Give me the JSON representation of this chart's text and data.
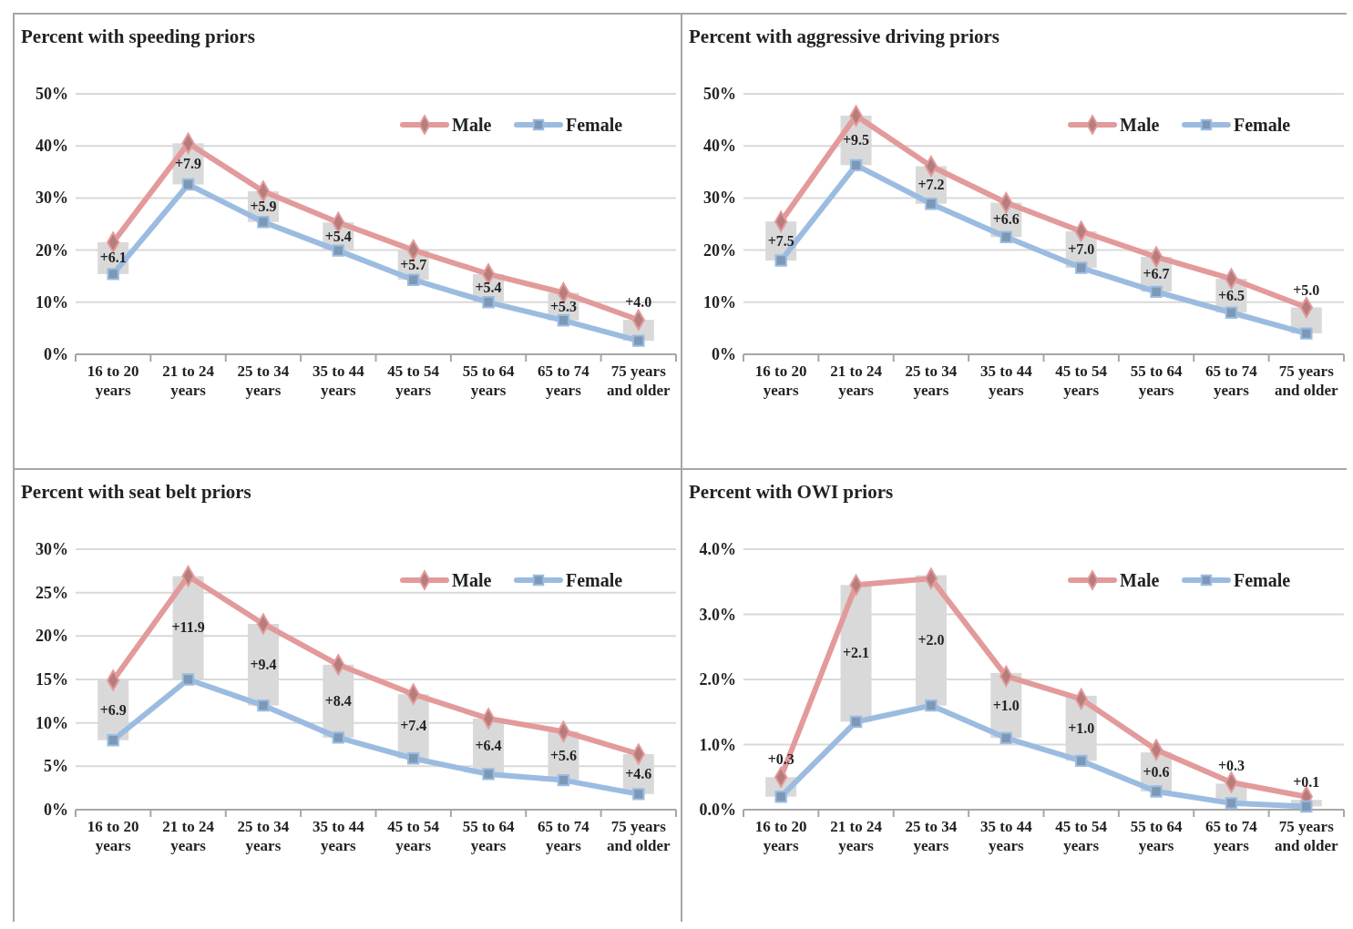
{
  "chart_data": [
    {
      "type": "line",
      "title": "Percent with speeding priors",
      "categories": [
        "16 to 20\nyears",
        "21 to 24\nyears",
        "25 to 34\nyears",
        "35 to 44\nyears",
        "45 to 54\nyears",
        "55 to 64\nyears",
        "65 to 74\nyears",
        "75 years\nand older"
      ],
      "ylim": [
        0,
        50
      ],
      "yticks": [
        {
          "value": 0,
          "label": "0%"
        },
        {
          "value": 10,
          "label": "10%"
        },
        {
          "value": 20,
          "label": "20%"
        },
        {
          "value": 30,
          "label": "30%"
        },
        {
          "value": 40,
          "label": "40%"
        },
        {
          "value": 50,
          "label": "50%"
        }
      ],
      "grid": "y",
      "legend": "top right",
      "series": [
        {
          "type": "bar",
          "color": "#d9d9d9",
          "base": [
            15.4,
            32.6,
            25.4,
            19.9,
            14.3,
            10.0,
            6.5,
            2.6
          ],
          "values": [
            6.1,
            7.9,
            5.9,
            5.4,
            5.7,
            5.4,
            5.3,
            4.0
          ],
          "value_labels": [
            "+6.1",
            "+7.9",
            "+5.9",
            "+5.4",
            "+5.7",
            "+5.4",
            "+5.3",
            "+4.0"
          ]
        },
        {
          "name": "Male",
          "color": "#e39a9a",
          "marker": "diamond",
          "values": [
            21.5,
            40.5,
            31.3,
            25.3,
            20.0,
            15.4,
            11.8,
            6.6
          ]
        },
        {
          "name": "Female",
          "color": "#9bbce0",
          "marker": "square",
          "values": [
            15.4,
            32.6,
            25.4,
            19.9,
            14.3,
            10.0,
            6.5,
            2.6
          ]
        }
      ]
    },
    {
      "type": "line",
      "title": "Percent with aggressive driving priors",
      "categories": [
        "16 to 20\nyears",
        "21 to 24\nyears",
        "25 to 34\nyears",
        "35 to 44\nyears",
        "45 to 54\nyears",
        "55 to 64\nyears",
        "65 to 74\nyears",
        "75 years\nand older"
      ],
      "ylim": [
        0,
        50
      ],
      "yticks": [
        {
          "value": 0,
          "label": "0%"
        },
        {
          "value": 10,
          "label": "10%"
        },
        {
          "value": 20,
          "label": "20%"
        },
        {
          "value": 30,
          "label": "30%"
        },
        {
          "value": 40,
          "label": "40%"
        },
        {
          "value": 50,
          "label": "50%"
        }
      ],
      "grid": "y",
      "legend": "top right",
      "series": [
        {
          "type": "bar",
          "color": "#d9d9d9",
          "base": [
            18.0,
            36.3,
            28.9,
            22.5,
            16.6,
            12.0,
            8.0,
            4.0
          ],
          "values": [
            7.5,
            9.5,
            7.2,
            6.6,
            7.0,
            6.7,
            6.5,
            5.0
          ],
          "value_labels": [
            "+7.5",
            "+9.5",
            "+7.2",
            "+6.6",
            "+7.0",
            "+6.7",
            "+6.5",
            "+5.0"
          ]
        },
        {
          "name": "Male",
          "color": "#e39a9a",
          "marker": "diamond",
          "values": [
            25.5,
            45.8,
            36.1,
            29.1,
            23.6,
            18.7,
            14.5,
            9.0
          ]
        },
        {
          "name": "Female",
          "color": "#9bbce0",
          "marker": "square",
          "values": [
            18.0,
            36.3,
            28.9,
            22.5,
            16.6,
            12.0,
            8.0,
            4.0
          ]
        }
      ]
    },
    {
      "type": "line",
      "title": "Percent with seat belt priors",
      "categories": [
        "16 to 20\nyears",
        "21 to 24\nyears",
        "25 to 34\nyears",
        "35 to 44\nyears",
        "45 to 54\nyears",
        "55 to 64\nyears",
        "65 to 74\nyears",
        "75 years\nand older"
      ],
      "ylim": [
        0,
        30
      ],
      "yticks": [
        {
          "value": 0,
          "label": "0%"
        },
        {
          "value": 5,
          "label": "5%"
        },
        {
          "value": 10,
          "label": "10%"
        },
        {
          "value": 15,
          "label": "15%"
        },
        {
          "value": 20,
          "label": "20%"
        },
        {
          "value": 25,
          "label": "25%"
        },
        {
          "value": 30,
          "label": "30%"
        }
      ],
      "grid": "y",
      "legend": "top right",
      "series": [
        {
          "type": "bar",
          "color": "#d9d9d9",
          "base": [
            8.0,
            15.0,
            12.0,
            8.3,
            5.9,
            4.1,
            3.4,
            1.8
          ],
          "values": [
            6.9,
            11.9,
            9.4,
            8.4,
            7.4,
            6.4,
            5.6,
            4.6
          ],
          "value_labels": [
            "+6.9",
            "+11.9",
            "+9.4",
            "+8.4",
            "+7.4",
            "+6.4",
            "+5.6",
            "+4.6"
          ]
        },
        {
          "name": "Male",
          "color": "#e39a9a",
          "marker": "diamond",
          "values": [
            14.9,
            26.9,
            21.4,
            16.7,
            13.3,
            10.5,
            9.0,
            6.4
          ]
        },
        {
          "name": "Female",
          "color": "#9bbce0",
          "marker": "square",
          "values": [
            8.0,
            15.0,
            12.0,
            8.3,
            5.9,
            4.1,
            3.4,
            1.8
          ]
        }
      ]
    },
    {
      "type": "line",
      "title": "Percent with OWI priors",
      "categories": [
        "16 to 20\nyears",
        "21 to 24\nyears",
        "25 to 34\nyears",
        "35 to 44\nyears",
        "45 to 54\nyears",
        "55 to 64\nyears",
        "65 to 74\nyears",
        "75 years\nand older"
      ],
      "ylim": [
        0,
        4
      ],
      "yticks": [
        {
          "value": 0,
          "label": "0.0%"
        },
        {
          "value": 1,
          "label": "1.0%"
        },
        {
          "value": 2,
          "label": "2.0%"
        },
        {
          "value": 3,
          "label": "3.0%"
        },
        {
          "value": 4,
          "label": "4.0%"
        }
      ],
      "grid": "y",
      "legend": "top right",
      "series": [
        {
          "type": "bar",
          "color": "#d9d9d9",
          "base": [
            0.2,
            1.35,
            1.6,
            1.1,
            0.75,
            0.28,
            0.1,
            0.05
          ],
          "values": [
            0.3,
            2.1,
            2.0,
            1.0,
            1.0,
            0.6,
            0.3,
            0.1
          ],
          "value_labels": [
            "+0.3",
            "+2.1",
            "+2.0",
            "+1.0",
            "+1.0",
            "+0.6",
            "+0.3",
            "+0.1"
          ]
        },
        {
          "name": "Male",
          "color": "#e39a9a",
          "marker": "diamond",
          "values": [
            0.5,
            3.45,
            3.55,
            2.05,
            1.7,
            0.92,
            0.42,
            0.2
          ]
        },
        {
          "name": "Female",
          "color": "#9bbce0",
          "marker": "square",
          "values": [
            0.2,
            1.35,
            1.6,
            1.1,
            0.75,
            0.28,
            0.1,
            0.05
          ]
        }
      ]
    }
  ]
}
